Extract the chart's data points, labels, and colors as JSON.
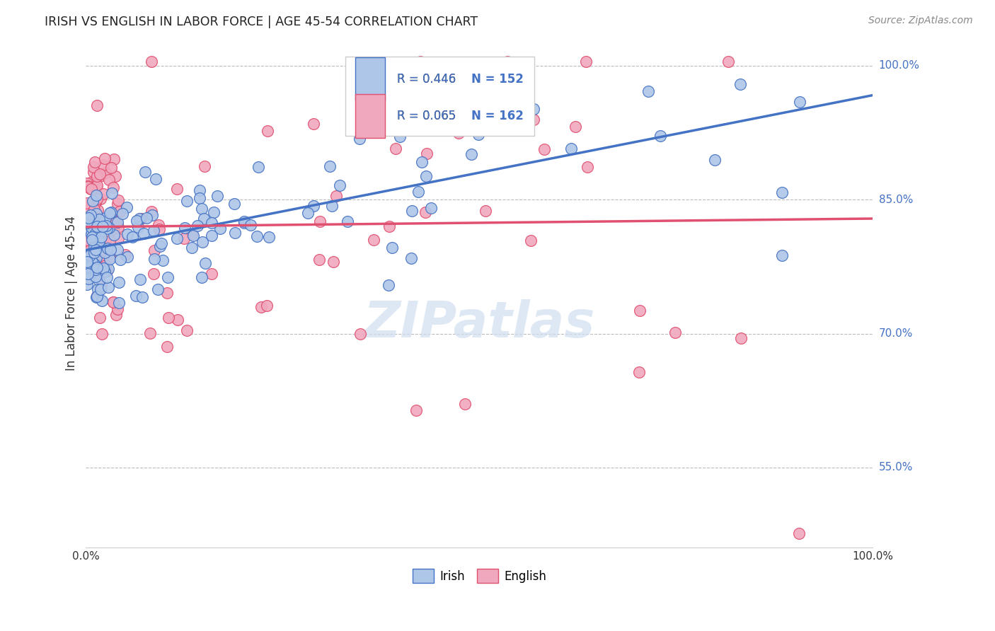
{
  "title": "IRISH VS ENGLISH IN LABOR FORCE | AGE 45-54 CORRELATION CHART",
  "source": "Source: ZipAtlas.com",
  "ylabel": "In Labor Force | Age 45-54",
  "xlim": [
    0.0,
    1.0
  ],
  "ylim": [
    0.46,
    1.03
  ],
  "legend_r_irish": "R = 0.446",
  "legend_n_irish": "N = 152",
  "legend_r_english": "R = 0.065",
  "legend_n_english": "N = 162",
  "irish_fill": "#aec6e8",
  "english_fill": "#f0a8be",
  "irish_edge": "#4472C4",
  "english_edge": "#E05070",
  "irish_line": "#4472C4",
  "english_line": "#E05070",
  "legend_color": "#4472C4",
  "background_color": "#ffffff",
  "grid_color": "#bbbbbb",
  "watermark": "ZIPatlas",
  "ytick_vals": [
    0.55,
    0.7,
    0.85,
    1.0
  ],
  "ytick_labels": [
    "55.0%",
    "70.0%",
    "85.0%",
    "100.0%"
  ]
}
